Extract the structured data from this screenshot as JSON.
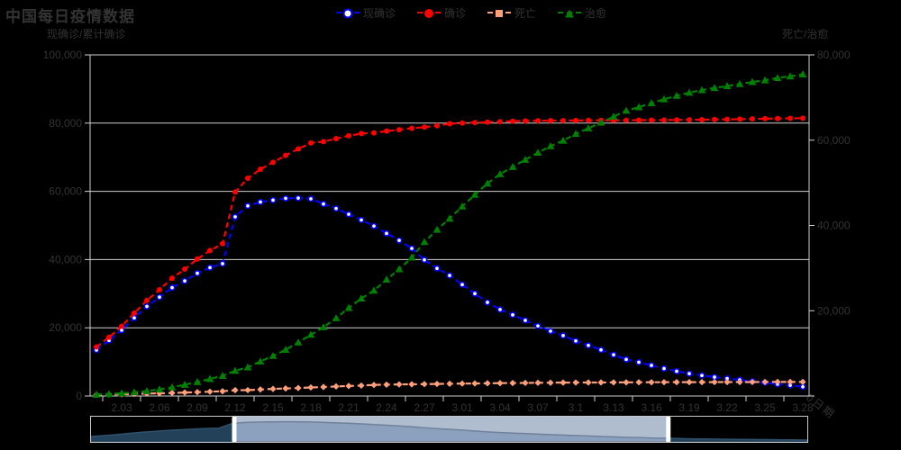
{
  "title": "中国每日疫情数据",
  "legend": [
    {
      "key": "current-confirmed",
      "label": "现确诊",
      "color": "#0000ff",
      "marker": "hollow-circle"
    },
    {
      "key": "confirmed",
      "label": "确诊",
      "color": "#ff0000",
      "marker": "circle"
    },
    {
      "key": "deaths",
      "label": "死亡",
      "color": "#ffa07a",
      "marker": "diamond"
    },
    {
      "key": "cured",
      "label": "治愈",
      "color": "#008000",
      "marker": "triangle"
    }
  ],
  "left_axis": {
    "name": "现确诊/累计确诊",
    "ticks": [
      "100,000",
      "80,000",
      "60,000",
      "40,000",
      "20,000",
      "0"
    ],
    "max": 100000
  },
  "right_axis": {
    "name": "死亡/治愈",
    "ticks": [
      "80,000",
      "60,000",
      "40,000",
      "20,000"
    ],
    "zero_label": "0",
    "max": 80000
  },
  "x_axis": {
    "name": "日期",
    "tick_labels": [
      "2.03",
      "2.06",
      "2.09",
      "2.12",
      "2.15",
      "2.18",
      "2.21",
      "2.24",
      "2.27",
      "3.01",
      "3.04",
      "3.07",
      "3.1",
      "3.13",
      "3.16",
      "3.19",
      "3.22",
      "3.25",
      "3.28"
    ]
  },
  "chart_data": {
    "type": "line",
    "title": "中国每日疫情数据",
    "xlabel": "日期",
    "ylabel_left": "现确诊/累计确诊",
    "ylabel_right": "死亡/治愈",
    "ylim_left": [
      0,
      100000
    ],
    "ylim_right": [
      0,
      80000
    ],
    "grid": true,
    "legend_position": "top",
    "background": "#000000",
    "x": [
      "2.01",
      "2.02",
      "2.03",
      "2.04",
      "2.05",
      "2.06",
      "2.07",
      "2.08",
      "2.09",
      "2.1",
      "2.11",
      "2.12",
      "2.13",
      "2.14",
      "2.15",
      "2.16",
      "2.17",
      "2.18",
      "2.19",
      "2.2",
      "2.21",
      "2.22",
      "2.23",
      "2.24",
      "2.25",
      "2.26",
      "2.27",
      "2.28",
      "2.29",
      "3.01",
      "3.02",
      "3.03",
      "3.04",
      "3.05",
      "3.06",
      "3.07",
      "3.08",
      "3.09",
      "3.1",
      "3.11",
      "3.12",
      "3.13",
      "3.14",
      "3.15",
      "3.16",
      "3.17",
      "3.18",
      "3.19",
      "3.2",
      "3.21",
      "3.22",
      "3.23",
      "3.24",
      "3.25",
      "3.26",
      "3.27",
      "3.28"
    ],
    "series": [
      {
        "name": "现确诊",
        "key": "current-confirmed",
        "axis": "left",
        "color": "#0000ff",
        "marker": "hollow-circle",
        "line": "dashed",
        "values": [
          13486,
          16303,
          19306,
          22904,
          26264,
          28985,
          31774,
          33738,
          35982,
          37626,
          38800,
          52526,
          55748,
          56873,
          57416,
          57934,
          58016,
          57805,
          56303,
          54965,
          53284,
          51606,
          49824,
          47672,
          45604,
          43258,
          39919,
          37414,
          35329,
          32652,
          30004,
          27433,
          25352,
          23784,
          22177,
          20533,
          19016,
          17721,
          16145,
          14831,
          13526,
          12094,
          10734,
          9898,
          8976,
          8056,
          7263,
          6569,
          6013,
          5549,
          5120,
          4735,
          4287,
          3947,
          3460,
          3128,
          2691
        ]
      },
      {
        "name": "确诊",
        "key": "confirmed",
        "axis": "left",
        "color": "#ff0000",
        "marker": "circle",
        "line": "dashed",
        "values": [
          14380,
          17205,
          20438,
          24324,
          28018,
          31161,
          34546,
          37198,
          40171,
          42638,
          44653,
          59804,
          63851,
          66492,
          68500,
          70548,
          72436,
          74185,
          74576,
          75465,
          76288,
          76936,
          77150,
          77658,
          78064,
          78497,
          78824,
          79251,
          79824,
          80026,
          80151,
          80270,
          80409,
          80552,
          80651,
          80695,
          80735,
          80754,
          80778,
          80793,
          80813,
          80824,
          80844,
          80860,
          80881,
          80894,
          80928,
          80967,
          81008,
          81054,
          81093,
          81171,
          81218,
          81285,
          81340,
          81394,
          81439
        ]
      },
      {
        "name": "死亡",
        "key": "deaths",
        "axis": "right",
        "color": "#ffa07a",
        "marker": "diamond",
        "line": "dashed",
        "values": [
          304,
          361,
          425,
          490,
          563,
          636,
          722,
          811,
          908,
          1016,
          1113,
          1367,
          1380,
          1523,
          1665,
          1770,
          1868,
          2004,
          2118,
          2236,
          2345,
          2442,
          2592,
          2663,
          2715,
          2744,
          2788,
          2835,
          2870,
          2912,
          2943,
          2981,
          3012,
          3042,
          3070,
          3097,
          3119,
          3136,
          3158,
          3169,
          3176,
          3189,
          3199,
          3213,
          3226,
          3237,
          3245,
          3248,
          3255,
          3261,
          3270,
          3277,
          3281,
          3287,
          3292,
          3295,
          3300
        ]
      },
      {
        "name": "治愈",
        "key": "cured",
        "axis": "right",
        "color": "#008000",
        "marker": "triangle",
        "line": "dashed",
        "values": [
          328,
          475,
          632,
          892,
          1153,
          1540,
          2050,
          2649,
          3281,
          3996,
          4740,
          5911,
          6723,
          8096,
          9419,
          10844,
          12552,
          14376,
          16155,
          18264,
          20659,
          22888,
          24734,
          27323,
          29745,
          32495,
          36117,
          39002,
          41625,
          44462,
          47204,
          49856,
          52045,
          53726,
          55404,
          57065,
          58600,
          59897,
          61475,
          62793,
          64111,
          65541,
          66911,
          67749,
          68679,
          69601,
          70420,
          71150,
          71740,
          72244,
          72703,
          73159,
          73650,
          74051,
          74588,
          74971,
          75448
        ]
      }
    ]
  },
  "datazoom": {
    "start_percent": 20,
    "end_percent": 80.6,
    "shadow_series": "现确诊",
    "colors": {
      "filler": "#b0bdce",
      "shadow_outside": "#24415a",
      "shadow_outside_line": "#2f5169",
      "shadow_inside": "#8ba1bd",
      "shadow_inside_line": "#71819b",
      "handle": "#ffffff",
      "border": "#c9c9c9"
    }
  }
}
